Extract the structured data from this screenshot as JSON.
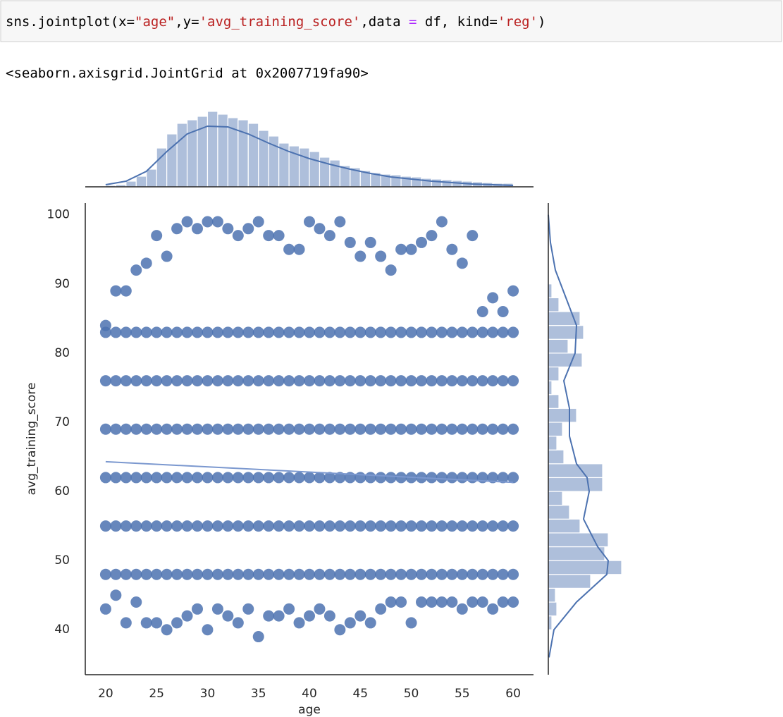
{
  "cell": {
    "code": [
      "sns.jointplot(x=",
      "\"age\"",
      ",y=",
      "'avg_training_score'",
      ",data ",
      "=",
      " df, kind=",
      "'reg'",
      ")"
    ],
    "output": "<seaborn.axisgrid.JointGrid at 0x2007719fa90>"
  },
  "chart_data": [
    {
      "type": "scatter",
      "color": "#4c72b0",
      "xlabel": "age",
      "ylabel": "avg_training_score",
      "xlim": [
        18,
        62
      ],
      "ylim": [
        33.5,
        101.7
      ],
      "xticks": [
        20,
        25,
        30,
        35,
        40,
        45,
        50,
        55,
        60
      ],
      "yticks": [
        40,
        50,
        60,
        70,
        80,
        90,
        100
      ],
      "x": [
        20,
        20,
        20,
        20,
        20,
        20,
        20,
        20,
        21,
        21,
        21,
        21,
        21,
        21,
        21,
        21,
        22,
        22,
        22,
        22,
        22,
        22,
        22,
        22,
        23,
        23,
        23,
        23,
        23,
        23,
        23,
        23,
        24,
        24,
        24,
        24,
        24,
        24,
        24,
        24,
        25,
        25,
        25,
        25,
        25,
        25,
        25,
        25,
        26,
        26,
        26,
        26,
        26,
        26,
        26,
        26,
        27,
        27,
        27,
        27,
        27,
        27,
        27,
        27,
        28,
        28,
        28,
        28,
        28,
        28,
        28,
        28,
        29,
        29,
        29,
        29,
        29,
        29,
        29,
        29,
        30,
        30,
        30,
        30,
        30,
        30,
        30,
        30,
        31,
        31,
        31,
        31,
        31,
        31,
        31,
        31,
        32,
        32,
        32,
        32,
        32,
        32,
        32,
        32,
        33,
        33,
        33,
        33,
        33,
        33,
        33,
        33,
        34,
        34,
        34,
        34,
        34,
        34,
        34,
        34,
        35,
        35,
        35,
        35,
        35,
        35,
        35,
        35,
        36,
        36,
        36,
        36,
        36,
        36,
        36,
        36,
        37,
        37,
        37,
        37,
        37,
        37,
        37,
        37,
        38,
        38,
        38,
        38,
        38,
        38,
        38,
        38,
        39,
        39,
        39,
        39,
        39,
        39,
        39,
        39,
        40,
        40,
        40,
        40,
        40,
        40,
        40,
        40,
        41,
        41,
        41,
        41,
        41,
        41,
        41,
        41,
        42,
        42,
        42,
        42,
        42,
        42,
        42,
        42,
        43,
        43,
        43,
        43,
        43,
        43,
        43,
        43,
        44,
        44,
        44,
        44,
        44,
        44,
        44,
        44,
        45,
        45,
        45,
        45,
        45,
        45,
        45,
        45,
        46,
        46,
        46,
        46,
        46,
        46,
        46,
        46,
        47,
        47,
        47,
        47,
        47,
        47,
        47,
        47,
        48,
        48,
        48,
        48,
        48,
        48,
        48,
        48,
        49,
        49,
        49,
        49,
        49,
        49,
        49,
        49,
        50,
        50,
        50,
        50,
        50,
        50,
        50,
        50,
        51,
        51,
        51,
        51,
        51,
        51,
        51,
        51,
        52,
        52,
        52,
        52,
        52,
        52,
        52,
        52,
        53,
        53,
        53,
        53,
        53,
        53,
        53,
        53,
        54,
        54,
        54,
        54,
        54,
        54,
        54,
        54,
        55,
        55,
        55,
        55,
        55,
        55,
        55,
        55,
        56,
        56,
        56,
        56,
        56,
        56,
        56,
        56,
        57,
        57,
        57,
        57,
        57,
        57,
        57,
        57,
        58,
        58,
        58,
        58,
        58,
        58,
        58,
        58,
        59,
        59,
        59,
        59,
        59,
        59,
        59,
        59,
        60,
        60,
        60,
        60,
        60,
        60,
        60,
        60
      ],
      "y": [
        43,
        48,
        55,
        62,
        69,
        76,
        83,
        84,
        45,
        48,
        55,
        62,
        69,
        76,
        83,
        89,
        41,
        48,
        55,
        62,
        69,
        76,
        83,
        89,
        44,
        48,
        55,
        62,
        69,
        76,
        83,
        92,
        41,
        48,
        55,
        62,
        69,
        76,
        83,
        93,
        41,
        48,
        55,
        62,
        69,
        76,
        83,
        97,
        40,
        48,
        55,
        62,
        69,
        76,
        83,
        94,
        41,
        48,
        55,
        62,
        69,
        76,
        83,
        98,
        42,
        48,
        55,
        62,
        69,
        76,
        83,
        99,
        43,
        48,
        55,
        62,
        69,
        76,
        83,
        98,
        40,
        48,
        55,
        62,
        69,
        76,
        83,
        99,
        43,
        48,
        55,
        62,
        69,
        76,
        83,
        99,
        42,
        48,
        55,
        62,
        69,
        76,
        83,
        98,
        41,
        48,
        55,
        62,
        69,
        76,
        83,
        97,
        43,
        48,
        55,
        62,
        69,
        76,
        83,
        98,
        39,
        48,
        55,
        62,
        69,
        76,
        83,
        99,
        42,
        48,
        55,
        62,
        69,
        76,
        83,
        97,
        42,
        48,
        55,
        62,
        69,
        76,
        83,
        97,
        43,
        48,
        55,
        62,
        69,
        76,
        83,
        95,
        41,
        48,
        55,
        62,
        69,
        76,
        83,
        95,
        42,
        48,
        55,
        62,
        69,
        76,
        83,
        99,
        43,
        48,
        55,
        62,
        69,
        76,
        83,
        98,
        42,
        48,
        55,
        62,
        69,
        76,
        83,
        97,
        40,
        48,
        55,
        62,
        69,
        76,
        83,
        99,
        41,
        48,
        55,
        62,
        69,
        76,
        83,
        96,
        42,
        48,
        55,
        62,
        69,
        76,
        83,
        94,
        41,
        48,
        55,
        62,
        69,
        76,
        83,
        96,
        43,
        48,
        55,
        62,
        69,
        76,
        83,
        94,
        44,
        48,
        55,
        62,
        69,
        76,
        83,
        92,
        44,
        48,
        55,
        62,
        69,
        76,
        83,
        95,
        41,
        48,
        55,
        62,
        69,
        76,
        83,
        95,
        44,
        48,
        55,
        62,
        69,
        76,
        83,
        96,
        44,
        48,
        55,
        62,
        69,
        76,
        83,
        97,
        44,
        48,
        55,
        62,
        69,
        76,
        83,
        99,
        44,
        48,
        55,
        62,
        69,
        76,
        83,
        95,
        43,
        48,
        55,
        62,
        69,
        76,
        83,
        93,
        44,
        48,
        55,
        62,
        69,
        76,
        83,
        97,
        44,
        48,
        55,
        62,
        69,
        76,
        83,
        86,
        43,
        48,
        55,
        62,
        69,
        76,
        83,
        88,
        44,
        48,
        55,
        62,
        69,
        76,
        83,
        86,
        44,
        48,
        55,
        62,
        69,
        76,
        83,
        89
      ],
      "regression": {
        "x": [
          20,
          60
        ],
        "y": [
          64.3,
          61.3
        ]
      }
    },
    {
      "type": "histogram",
      "orientation": "vertical",
      "color": "#4c72b0",
      "ylim": [
        0,
        110
      ],
      "bins": [
        20,
        21,
        22,
        23,
        24,
        25,
        26,
        27,
        28,
        29,
        30,
        31,
        32,
        33,
        34,
        35,
        36,
        37,
        38,
        39,
        40,
        41,
        42,
        43,
        44,
        45,
        46,
        47,
        48,
        49,
        50,
        51,
        52,
        53,
        54,
        55,
        56,
        57,
        58,
        59,
        60
      ],
      "counts": [
        2,
        3,
        8,
        15,
        25,
        55,
        75,
        90,
        95,
        100,
        107,
        103,
        98,
        95,
        90,
        80,
        72,
        62,
        58,
        55,
        50,
        42,
        38,
        30,
        27,
        23,
        20,
        18,
        17,
        15,
        14,
        12,
        11,
        10,
        9,
        8,
        7,
        6,
        5,
        5
      ],
      "kde": {
        "x": [
          20,
          22,
          24,
          26,
          28,
          30,
          32,
          34,
          36,
          38,
          40,
          42,
          44,
          46,
          48,
          50,
          52,
          54,
          56,
          58,
          60
        ],
        "y": [
          3,
          8,
          22,
          50,
          75,
          86,
          85,
          75,
          62,
          50,
          40,
          32,
          25,
          19,
          14,
          11,
          8,
          6,
          4,
          3,
          2
        ]
      }
    },
    {
      "type": "histogram",
      "orientation": "horizontal",
      "color": "#4c72b0",
      "xlim": [
        0,
        110
      ],
      "bins": [
        40,
        42,
        44,
        46,
        48,
        50,
        52,
        54,
        56,
        58,
        60,
        62,
        64,
        66,
        68,
        70,
        72,
        74,
        76,
        78,
        80,
        82,
        84,
        86,
        88,
        90
      ],
      "counts": [
        5,
        12,
        10,
        60,
        104,
        80,
        85,
        45,
        30,
        20,
        77,
        77,
        22,
        12,
        20,
        40,
        15,
        5,
        15,
        48,
        28,
        50,
        45,
        15,
        5
      ],
      "kde": {
        "x": [
          36,
          40,
          44,
          48,
          50,
          52,
          56,
          60,
          62,
          64,
          68,
          72,
          76,
          80,
          84,
          88,
          92,
          96,
          100
        ],
        "y": [
          1,
          8,
          40,
          83,
          85,
          70,
          50,
          58,
          55,
          40,
          30,
          30,
          22,
          38,
          40,
          25,
          10,
          3,
          0
        ]
      }
    }
  ]
}
